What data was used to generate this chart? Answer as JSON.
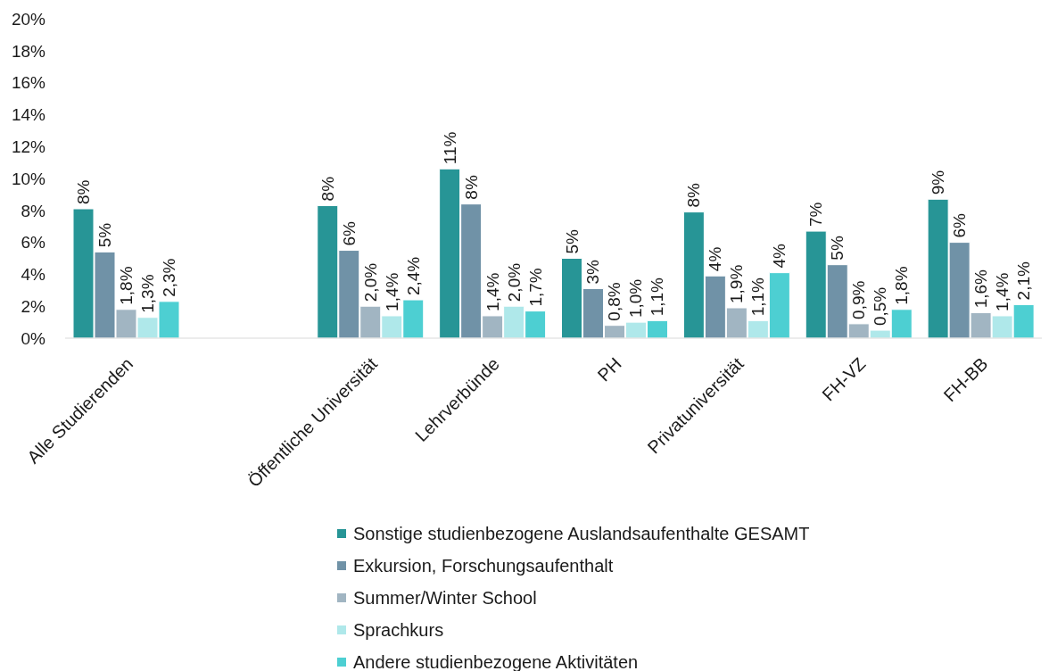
{
  "chart_data": {
    "type": "bar",
    "categories": [
      "Alle Studierenden",
      null,
      "Öffentliche Universität",
      "Lehrverbünde",
      "PH",
      "Privatuniversität",
      "FH-VZ",
      "FH-BB"
    ],
    "series": [
      {
        "name": "Sonstige studienbezogene Auslandsaufenthalte GESAMT",
        "color": "#279596",
        "values": [
          8.1,
          null,
          8.3,
          10.6,
          5.0,
          7.9,
          6.7,
          8.7
        ],
        "value_labels": [
          "8%",
          null,
          "8%",
          "11%",
          "5%",
          "8%",
          "7%",
          "9%"
        ]
      },
      {
        "name": "Exkursion, Forschungsaufenthalt",
        "color": "#7092a7",
        "values": [
          5.4,
          null,
          5.5,
          8.4,
          3.1,
          3.9,
          4.6,
          6.0
        ],
        "value_labels": [
          "5%",
          null,
          "6%",
          "8%",
          "3%",
          "4%",
          "5%",
          "6%"
        ]
      },
      {
        "name": "Summer/Winter School",
        "color": "#a1b5c2",
        "values": [
          1.8,
          null,
          2.0,
          1.4,
          0.8,
          1.9,
          0.9,
          1.6
        ],
        "value_labels": [
          "1,8%",
          null,
          "2,0%",
          "1,4%",
          "0,8%",
          "1,9%",
          "0,9%",
          "1,6%"
        ]
      },
      {
        "name": "Sprachkurs",
        "color": "#afe8ea",
        "values": [
          1.3,
          null,
          1.4,
          2.0,
          1.0,
          1.1,
          0.5,
          1.4
        ],
        "value_labels": [
          "1,3%",
          null,
          "1,4%",
          "2,0%",
          "1,0%",
          "1,1%",
          "0,5%",
          "1,4%"
        ]
      },
      {
        "name": "Andere studienbezogene Aktivitäten",
        "color": "#4dcfd2",
        "values": [
          2.3,
          null,
          2.4,
          1.7,
          1.1,
          4.1,
          1.8,
          2.1
        ],
        "value_labels": [
          "2,3%",
          null,
          "2,4%",
          "1,7%",
          "1,1%",
          "4%",
          "1,8%",
          "2,1%"
        ]
      }
    ],
    "ylim": [
      0,
      20
    ],
    "yticks": [
      {
        "value": 0,
        "label": "0%"
      },
      {
        "value": 2,
        "label": "2%"
      },
      {
        "value": 4,
        "label": "4%"
      },
      {
        "value": 6,
        "label": "6%"
      },
      {
        "value": 8,
        "label": "8%"
      },
      {
        "value": 10,
        "label": "10%"
      },
      {
        "value": 12,
        "label": "12%"
      },
      {
        "value": 14,
        "label": "14%"
      },
      {
        "value": 16,
        "label": "16%"
      },
      {
        "value": 18,
        "label": "18%"
      },
      {
        "value": 20,
        "label": "20%"
      }
    ],
    "legend": "bottom"
  }
}
